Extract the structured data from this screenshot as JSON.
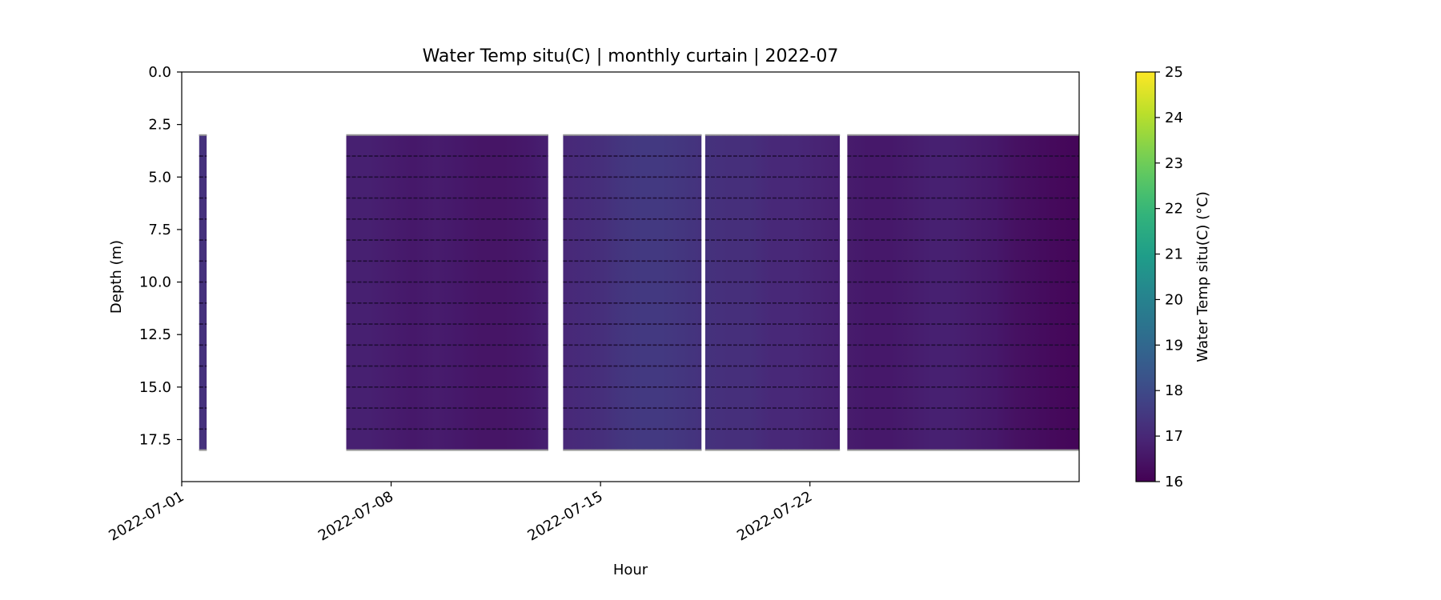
{
  "chart_data": {
    "type": "heatmap",
    "title": "Water Temp situ(C) | monthly curtain | 2022-07",
    "xlabel": "Hour",
    "ylabel": "Depth (m)",
    "x_range": [
      "2022-07-01",
      "2022-07-31"
    ],
    "y_range": [
      0.0,
      19.5
    ],
    "y_inverted": true,
    "x_ticks": [
      "2022-07-01",
      "2022-07-08",
      "2022-07-15",
      "2022-07-22"
    ],
    "y_ticks": [
      "0.0",
      "2.5",
      "5.0",
      "7.5",
      "10.0",
      "12.5",
      "15.0",
      "17.5"
    ],
    "y_tick_values": [
      0.0,
      2.5,
      5.0,
      7.5,
      10.0,
      12.5,
      15.0,
      17.5
    ],
    "grid": false,
    "colorbar": {
      "label": "Water Temp situ(C) (°C)",
      "min": 16,
      "max": 25,
      "ticks": [
        "16",
        "17",
        "18",
        "19",
        "20",
        "21",
        "22",
        "23",
        "24",
        "25"
      ],
      "colormap": "viridis"
    },
    "depth_range_m": [
      3.0,
      18.0
    ],
    "sensor_depths_m": [
      3.0,
      4.0,
      5.0,
      6.0,
      7.0,
      8.0,
      9.0,
      10.0,
      11.0,
      12.0,
      13.0,
      14.0,
      15.0,
      16.0,
      17.0,
      18.0
    ],
    "segments": [
      {
        "start": "2022-07-01 14:00",
        "end": "2022-07-01 20:00",
        "temps": [
          17.3,
          17.3,
          17.2
        ]
      },
      {
        "start": "2022-07-06 12:00",
        "end": "2022-07-13 06:00",
        "temps": [
          16.8,
          16.8,
          16.7,
          16.6,
          16.7,
          16.6,
          16.5,
          16.5,
          16.6,
          16.8
        ]
      },
      {
        "start": "2022-07-13 18:00",
        "end": "2022-07-18 09:00",
        "temps": [
          17.0,
          17.1,
          17.2,
          17.4,
          17.5,
          17.5,
          17.4,
          17.3
        ]
      },
      {
        "start": "2022-07-18 12:00",
        "end": "2022-07-23 00:00",
        "temps": [
          17.3,
          17.2,
          17.2,
          17.0,
          17.0,
          16.9,
          16.8
        ]
      },
      {
        "start": "2022-07-23 06:00",
        "end": "2022-07-31 00:00",
        "temps": [
          16.7,
          16.6,
          16.6,
          16.7,
          16.8,
          16.8,
          16.7,
          16.6,
          16.4,
          16.3,
          16.2,
          16.1
        ]
      }
    ]
  }
}
